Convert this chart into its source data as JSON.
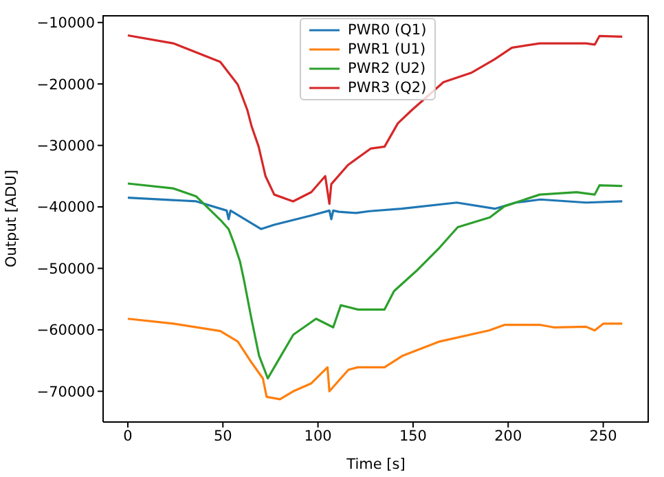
{
  "chart_data": {
    "type": "line",
    "xlabel": "Time [s]",
    "ylabel": "Output [ADU]",
    "xlim": [
      -13,
      274
    ],
    "ylim": [
      -75000,
      -8800
    ],
    "xticks": [
      0,
      50,
      100,
      150,
      200,
      250
    ],
    "yticks": [
      -70000,
      -60000,
      -50000,
      -40000,
      -30000,
      -20000,
      -10000
    ],
    "legend": "top",
    "grid": false,
    "marker": "none",
    "line_style": "solid",
    "series": [
      {
        "name": "PWR0 (Q1)",
        "color": "#1f77b4",
        "x": [
          0,
          36,
          52,
          53,
          54,
          70,
          77,
          96.5,
          106,
          107,
          108,
          111,
          120,
          127,
          144,
          173,
          193,
          204,
          217,
          241,
          260
        ],
        "values": [
          -38500,
          -39100,
          -40600,
          -42000,
          -40600,
          -43600,
          -42900,
          -41400,
          -40600,
          -42000,
          -40600,
          -40800,
          -41000,
          -40700,
          -40300,
          -39300,
          -40300,
          -39300,
          -38800,
          -39300,
          -39100
        ]
      },
      {
        "name": "PWR1 (U1)",
        "color": "#ff7f0e",
        "x": [
          0,
          24,
          48.6,
          57.8,
          65,
          71,
          73,
          80,
          87,
          96.5,
          105,
          106,
          116,
          121,
          135,
          144.6,
          164,
          190,
          198,
          217,
          224,
          241,
          245.5,
          250,
          260
        ],
        "values": [
          -58200,
          -59000,
          -60200,
          -61900,
          -65300,
          -67900,
          -70900,
          -71300,
          -70000,
          -68700,
          -66100,
          -70000,
          -66500,
          -66100,
          -66100,
          -64200,
          -61900,
          -60100,
          -59200,
          -59200,
          -59600,
          -59500,
          -60100,
          -59000,
          -59000
        ]
      },
      {
        "name": "PWR2 (U2)",
        "color": "#2ca02c",
        "x": [
          0,
          24,
          36,
          48.6,
          53,
          55.8,
          59,
          61,
          65,
          69,
          73.6,
          80,
          87,
          99,
          108,
          112,
          121,
          135,
          140,
          151.8,
          164,
          173.5,
          190.4,
          198,
          216.6,
          236,
          245.5,
          248,
          260
        ],
        "values": [
          -36200,
          -37000,
          -38300,
          -42100,
          -43600,
          -45900,
          -48900,
          -51800,
          -58200,
          -64200,
          -67900,
          -64500,
          -60800,
          -58200,
          -59600,
          -56000,
          -56700,
          -56700,
          -53700,
          -50400,
          -46600,
          -43300,
          -41700,
          -39900,
          -38000,
          -37600,
          -38000,
          -36500,
          -36600
        ]
      },
      {
        "name": "PWR3 (Q2)",
        "color": "#d62728",
        "x": [
          0,
          24,
          48.6,
          57.8,
          62.8,
          65,
          68.8,
          72.4,
          77,
          86.9,
          96.5,
          103.8,
          106,
          107,
          115.7,
          127.8,
          135,
          142,
          149.5,
          166,
          180.5,
          192.8,
          202,
          216.6,
          241,
          245.5,
          248,
          260
        ],
        "values": [
          -12100,
          -13400,
          -16400,
          -20100,
          -24200,
          -26800,
          -30200,
          -35000,
          -38000,
          -39100,
          -37600,
          -35000,
          -39500,
          -36300,
          -33200,
          -30500,
          -30200,
          -26400,
          -24200,
          -19700,
          -18200,
          -16000,
          -14100,
          -13400,
          -13400,
          -13600,
          -12200,
          -12300
        ]
      }
    ]
  }
}
